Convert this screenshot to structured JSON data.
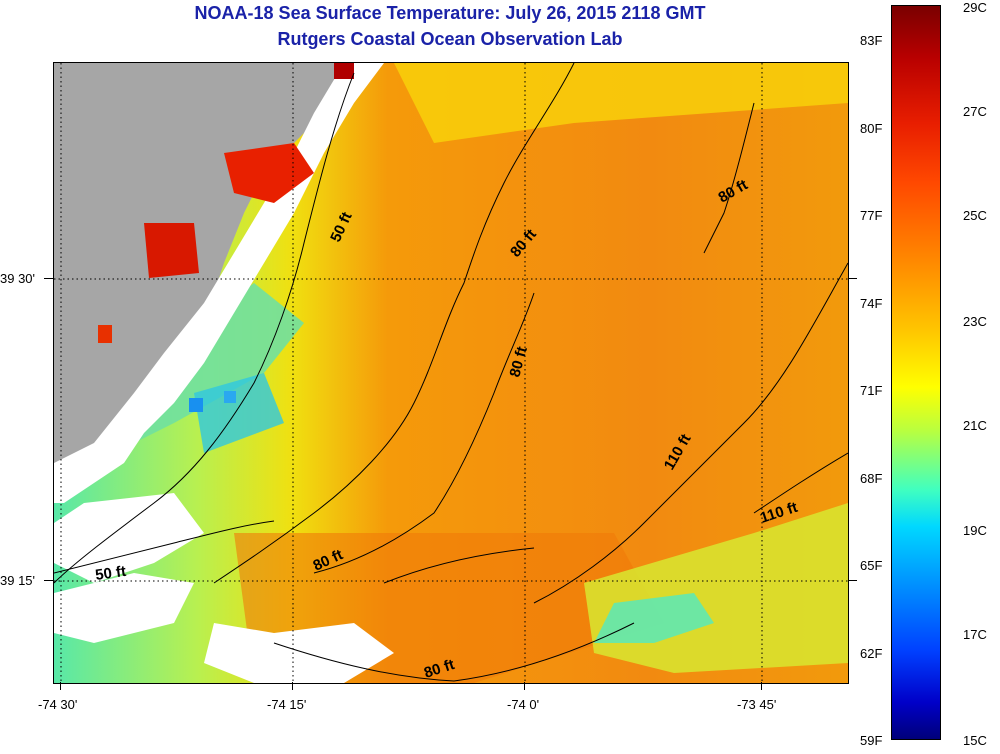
{
  "header": {
    "title": "NOAA-18 Sea Surface Temperature:  July 26, 2015 2118 GMT",
    "subtitle": "Rutgers Coastal Ocean Observation Lab"
  },
  "map": {
    "x_tick_labels": [
      "-74 30'",
      "-74 15'",
      "-74 0'",
      "-73 45'"
    ],
    "y_tick_labels": [
      "39 30'",
      "39 15'"
    ],
    "contour_labels": [
      "50 ft",
      "80 ft",
      "80 ft",
      "80 ft",
      "110 ft",
      "110 ft",
      "50 ft",
      "80 ft",
      "80 ft"
    ],
    "colors": {
      "land": "#a6a6a6",
      "no_data": "#ffffff",
      "contour": "#000000"
    }
  },
  "colorbar": {
    "fahrenheit_labels": [
      "83F",
      "80F",
      "77F",
      "74F",
      "71F",
      "68F",
      "65F",
      "62F",
      "59F"
    ],
    "celsius_labels": [
      "29C",
      "27C",
      "25C",
      "23C",
      "21C",
      "19C",
      "17C",
      "15C"
    ]
  }
}
